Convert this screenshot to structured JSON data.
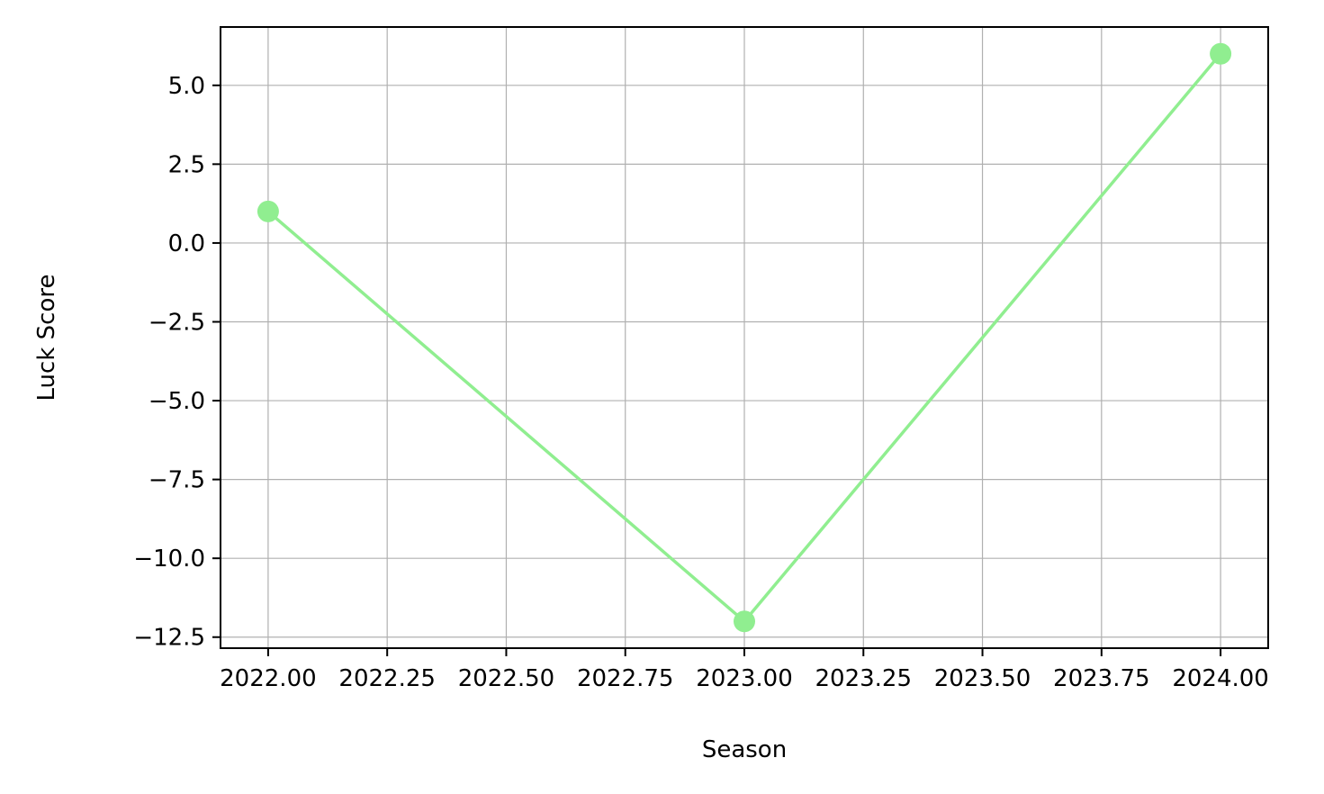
{
  "chart_data": {
    "type": "line",
    "title": "",
    "xlabel": "Season",
    "ylabel": "Luck Score",
    "xlim": [
      2021.9,
      2024.1
    ],
    "ylim": [
      -12.85,
      6.85
    ],
    "grid": true,
    "xticks": [
      2022.0,
      2022.25,
      2022.5,
      2022.75,
      2023.0,
      2023.25,
      2023.5,
      2023.75,
      2024.0
    ],
    "xtick_labels": [
      "2022.00",
      "2022.25",
      "2022.50",
      "2022.75",
      "2023.00",
      "2023.25",
      "2023.50",
      "2023.75",
      "2024.00"
    ],
    "yticks": [
      5.0,
      2.5,
      0.0,
      -2.5,
      -5.0,
      -7.5,
      -10.0,
      -12.5
    ],
    "ytick_labels": [
      "5.0",
      "2.5",
      "0.0",
      "−2.5",
      "−5.0",
      "−7.5",
      "−10.0",
      "−12.5"
    ],
    "series": [
      {
        "color": "#90ee90",
        "marker": "circle",
        "x": [
          2022,
          2023,
          2024
        ],
        "y": [
          1,
          -12,
          6
        ]
      }
    ]
  }
}
